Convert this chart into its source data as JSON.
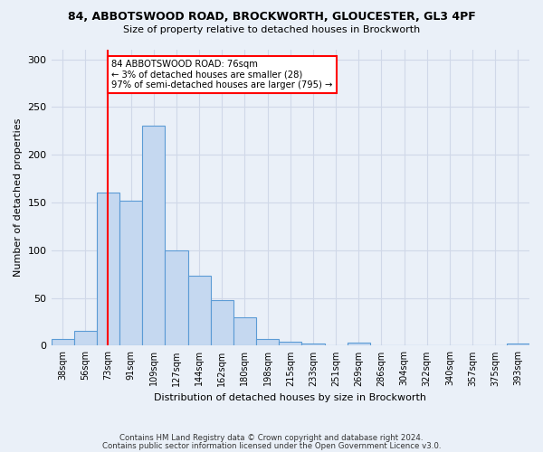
{
  "title_line1": "84, ABBOTSWOOD ROAD, BROCKWORTH, GLOUCESTER, GL3 4PF",
  "title_line2": "Size of property relative to detached houses in Brockworth",
  "xlabel": "Distribution of detached houses by size in Brockworth",
  "ylabel": "Number of detached properties",
  "categories": [
    "38sqm",
    "56sqm",
    "73sqm",
    "91sqm",
    "109sqm",
    "127sqm",
    "144sqm",
    "162sqm",
    "180sqm",
    "198sqm",
    "215sqm",
    "233sqm",
    "251sqm",
    "269sqm",
    "286sqm",
    "304sqm",
    "322sqm",
    "340sqm",
    "357sqm",
    "375sqm",
    "393sqm"
  ],
  "values": [
    7,
    16,
    160,
    152,
    230,
    100,
    73,
    48,
    30,
    7,
    4,
    2,
    0,
    3,
    0,
    0,
    0,
    0,
    0,
    0,
    2
  ],
  "bar_color": "#c5d8f0",
  "bar_edge_color": "#5b9bd5",
  "grid_color": "#d0d8e8",
  "bg_color": "#eaf0f8",
  "vline_x": 2,
  "vline_color": "red",
  "annotation_text": "84 ABBOTSWOOD ROAD: 76sqm\n← 3% of detached houses are smaller (28)\n97% of semi-detached houses are larger (795) →",
  "annotation_box_color": "white",
  "annotation_box_edge_color": "red",
  "ylim": [
    0,
    310
  ],
  "yticks": [
    0,
    50,
    100,
    150,
    200,
    250,
    300
  ],
  "footer_line1": "Contains HM Land Registry data © Crown copyright and database right 2024.",
  "footer_line2": "Contains public sector information licensed under the Open Government Licence v3.0."
}
